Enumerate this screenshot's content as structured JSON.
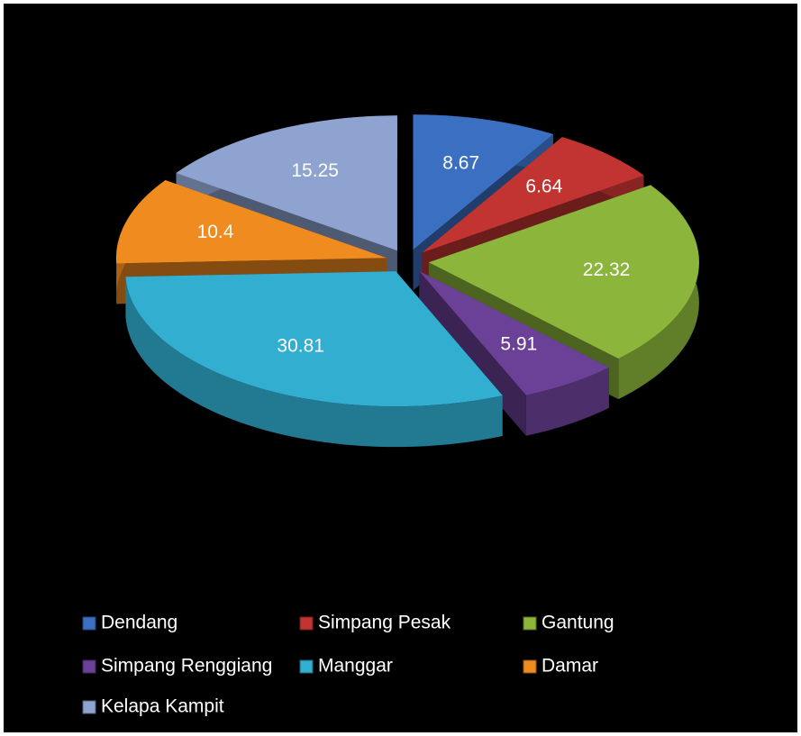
{
  "chart_data": {
    "type": "pie3d",
    "categories": [
      "Dendang",
      "Simpang Pesak",
      "Gantung",
      "Simpang Renggiang",
      "Manggar",
      "Damar",
      "Kelapa Kampit"
    ],
    "values": [
      8.67,
      6.64,
      22.32,
      5.91,
      30.81,
      10.4,
      15.25
    ],
    "colors": [
      "#3b6fc2",
      "#c23431",
      "#8bb53b",
      "#6b4197",
      "#31aed0",
      "#f08b1f",
      "#8ea3cf"
    ],
    "legend": "bottom"
  }
}
